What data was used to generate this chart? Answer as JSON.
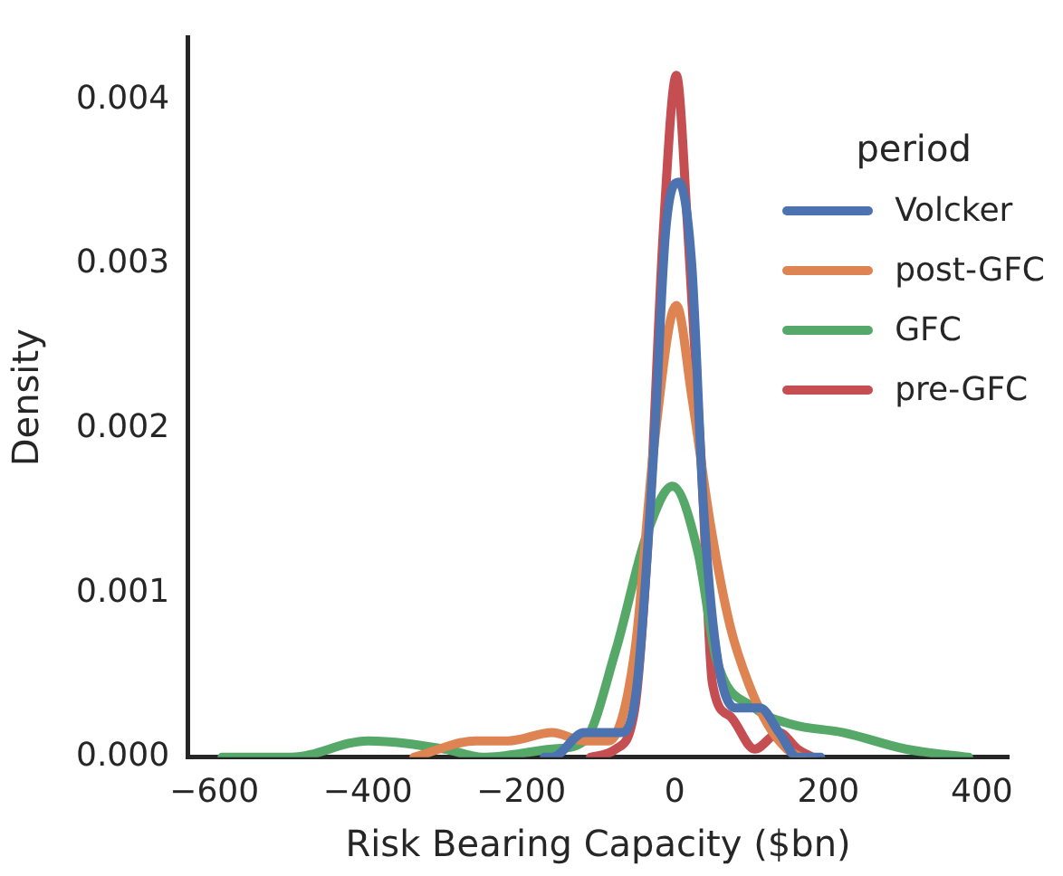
{
  "chart_data": {
    "type": "line",
    "xlabel": "Risk Bearing Capacity ($bn)",
    "ylabel": "Density",
    "legend_title": "period",
    "legend": "top right",
    "grid": false,
    "marker": "none",
    "line_style": "solid",
    "xlim": [
      -635,
      435
    ],
    "ylim": [
      0,
      0.00438
    ],
    "xticks": [
      {
        "value": -600,
        "label": "−600"
      },
      {
        "value": -400,
        "label": "−400"
      },
      {
        "value": -200,
        "label": "−200"
      },
      {
        "value": 0,
        "label": "0"
      },
      {
        "value": 200,
        "label": "200"
      },
      {
        "value": 400,
        "label": "400"
      }
    ],
    "yticks": [
      {
        "value": 0,
        "label": "0.000"
      },
      {
        "value": 0.001,
        "label": "0.001"
      },
      {
        "value": 0.002,
        "label": "0.002"
      },
      {
        "value": 0.003,
        "label": "0.003"
      },
      {
        "value": 0.004,
        "label": "0.004"
      }
    ],
    "series": [
      {
        "name": "Volcker",
        "color": "#4c72b0",
        "x": [
          -170,
          -160,
          -118,
          -69,
          -49,
          -27,
          -12,
          5,
          22,
          37,
          54,
          79,
          111,
          136,
          160,
          190
        ],
        "values": [
          0,
          0,
          0.00015,
          0.00015,
          0.00045,
          0.0019,
          0.0032,
          0.0035,
          0.003,
          0.00155,
          0.00065,
          0.0003,
          0.0003,
          0.00015,
          0,
          0
        ]
      },
      {
        "name": "post-GFC",
        "color": "#dd8452",
        "x": [
          -340,
          -259,
          -217,
          -160,
          -118,
          -86,
          -52,
          -27,
          2,
          22,
          47,
          72,
          96,
          121,
          146,
          165
        ],
        "values": [
          0,
          0.0001,
          0.0001,
          0.00015,
          0.0001,
          0.0001,
          0.00065,
          0.0019,
          0.00275,
          0.0022,
          0.0014,
          0.0008,
          0.00045,
          0.0002,
          5e-05,
          0
        ]
      },
      {
        "name": "GFC",
        "color": "#55a868",
        "x": [
          -590,
          -500,
          -400,
          -300,
          -250,
          -160,
          -118,
          -77,
          -37,
          -3,
          30,
          54,
          104,
          153,
          220,
          301,
          383
        ],
        "values": [
          0,
          0,
          0.0001,
          5e-05,
          0,
          5e-05,
          0.0001,
          0.00065,
          0.00135,
          0.00165,
          0.00125,
          0.0006,
          0.0003,
          0.0002,
          0.00015,
          5e-05,
          0
        ]
      },
      {
        "name": "pre-GFC",
        "color": "#c44e52",
        "x": [
          -110,
          -77,
          -52,
          -32,
          -15,
          2,
          17,
          35,
          49,
          72,
          104,
          136,
          160,
          180
        ],
        "values": [
          0,
          5e-05,
          0.0003,
          0.00155,
          0.0032,
          0.00415,
          0.0032,
          0.00175,
          0.00045,
          0.00025,
          5e-05,
          0.00015,
          5e-05,
          0
        ]
      }
    ]
  }
}
